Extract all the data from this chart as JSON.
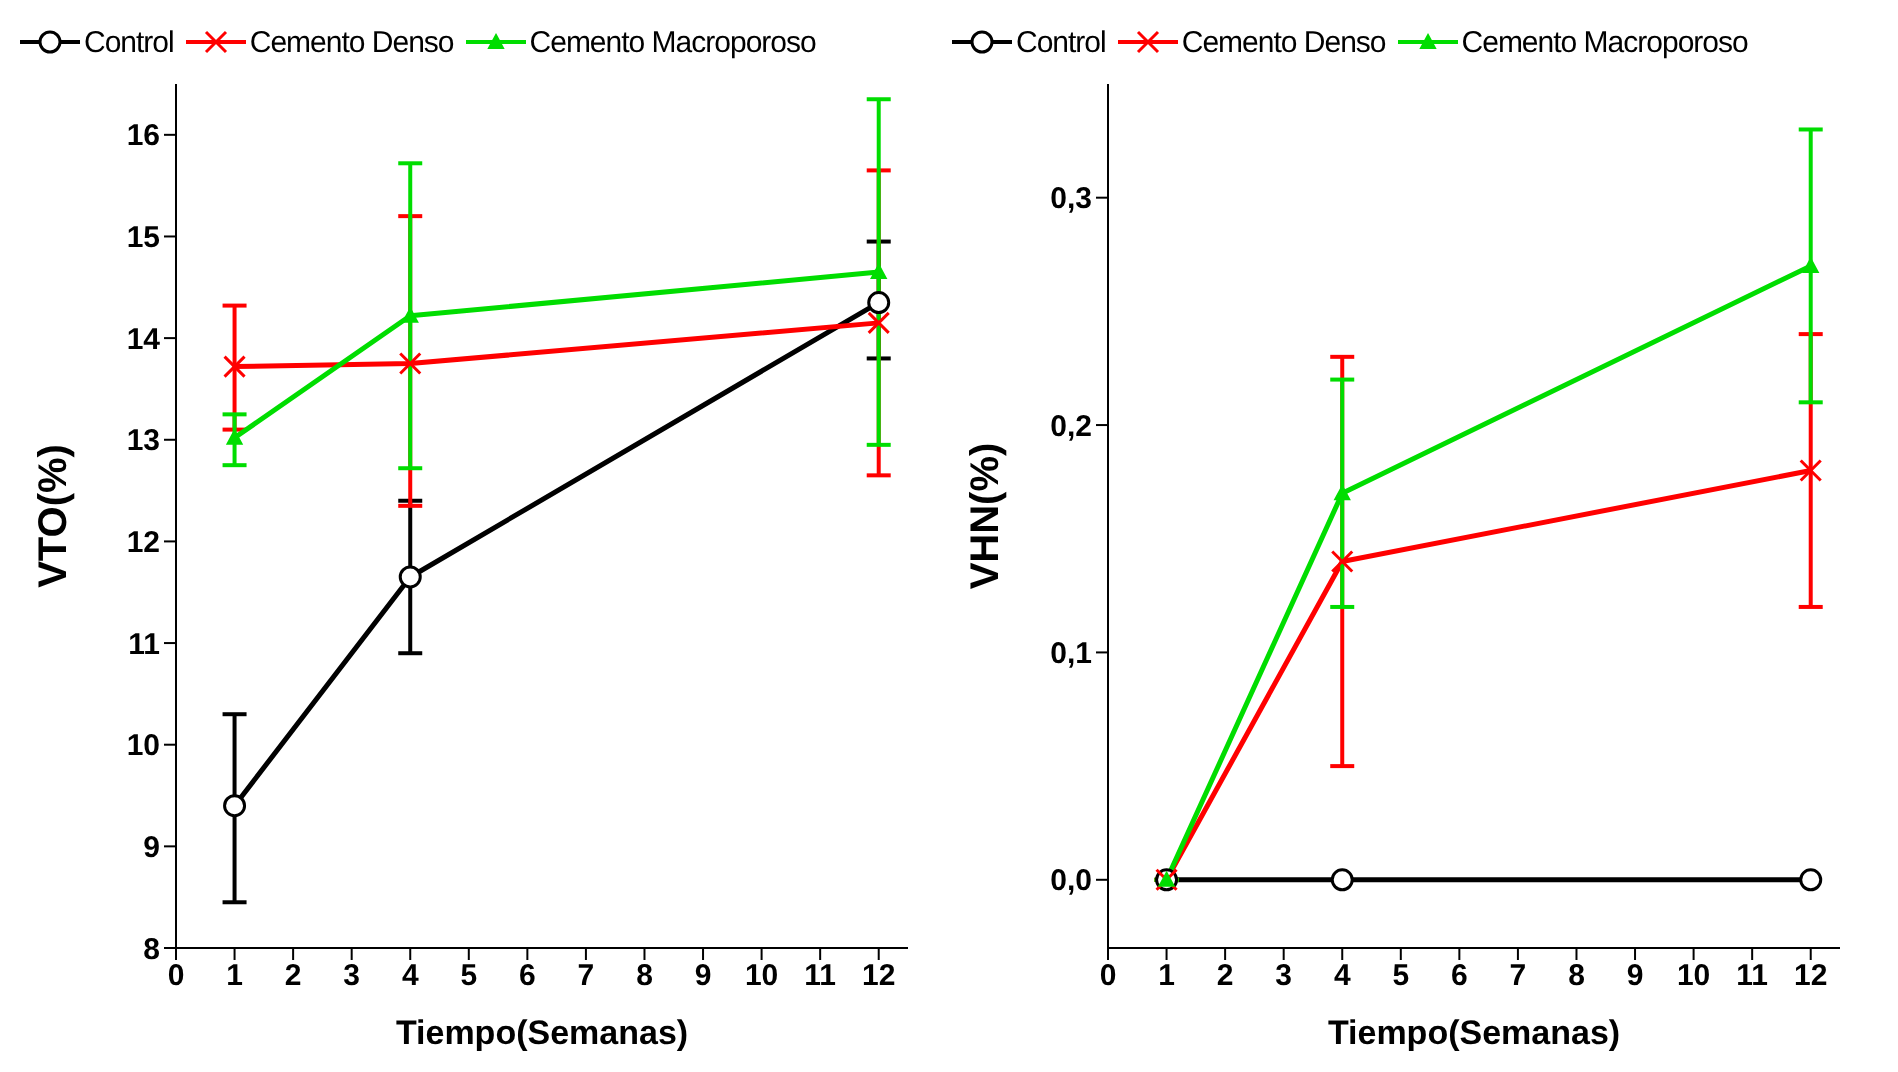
{
  "chart_data": [
    {
      "type": "line",
      "xlabel": "Tiempo(Semanas)",
      "ylabel": "VTO(%)",
      "x": [
        1,
        4,
        12
      ],
      "xlim": [
        0,
        12.5
      ],
      "xticks": [
        0,
        1,
        2,
        3,
        4,
        5,
        6,
        7,
        8,
        9,
        10,
        11,
        12
      ],
      "ylim": [
        8,
        16.5
      ],
      "yticks": [
        8,
        9,
        10,
        11,
        12,
        13,
        14,
        15,
        16
      ],
      "legend": "top",
      "series": [
        {
          "name": "Control",
          "color": "#000000",
          "marker": "circle",
          "values": [
            9.4,
            11.65,
            14.35
          ],
          "errors": [
            [
              8.45,
              10.3
            ],
            [
              10.9,
              12.4
            ],
            [
              13.8,
              14.95
            ]
          ]
        },
        {
          "name": "Cemento Denso",
          "color": "#ff0000",
          "marker": "cross",
          "values": [
            13.72,
            13.75,
            14.15
          ],
          "errors": [
            [
              13.1,
              14.32
            ],
            [
              12.35,
              15.2
            ],
            [
              12.65,
              15.65
            ]
          ]
        },
        {
          "name": "Cemento Macroporoso",
          "color": "#00dd00",
          "marker": "triangle",
          "values": [
            13.02,
            14.22,
            14.65
          ],
          "errors": [
            [
              12.75,
              13.25
            ],
            [
              12.72,
              15.72
            ],
            [
              12.95,
              16.35
            ]
          ]
        }
      ]
    },
    {
      "type": "line",
      "xlabel": "Tiempo(Semanas)",
      "ylabel": "VHN(%)",
      "x": [
        1,
        4,
        12
      ],
      "xlim": [
        0,
        12.5
      ],
      "xticks": [
        0,
        1,
        2,
        3,
        4,
        5,
        6,
        7,
        8,
        9,
        10,
        11,
        12
      ],
      "ylim": [
        -0.03,
        0.35
      ],
      "yticks": [
        {
          "value": 0,
          "label": "0,0"
        },
        {
          "value": 0.1,
          "label": "0,1"
        },
        {
          "value": 0.2,
          "label": "0,2"
        },
        {
          "value": 0.3,
          "label": "0,3"
        }
      ],
      "legend": "top",
      "series": [
        {
          "name": "Control",
          "color": "#000000",
          "marker": "circle",
          "values": [
            0,
            0,
            0
          ]
        },
        {
          "name": "Cemento Denso",
          "color": "#ff0000",
          "marker": "cross",
          "values": [
            0,
            0.14,
            0.18
          ],
          "errors": [
            null,
            [
              0.05,
              0.23
            ],
            [
              0.12,
              0.24
            ]
          ]
        },
        {
          "name": "Cemento Macroporoso",
          "color": "#00dd00",
          "marker": "triangle",
          "values": [
            0,
            0.17,
            0.27
          ],
          "errors": [
            null,
            [
              0.12,
              0.22
            ],
            [
              0.21,
              0.33
            ]
          ]
        }
      ]
    }
  ]
}
